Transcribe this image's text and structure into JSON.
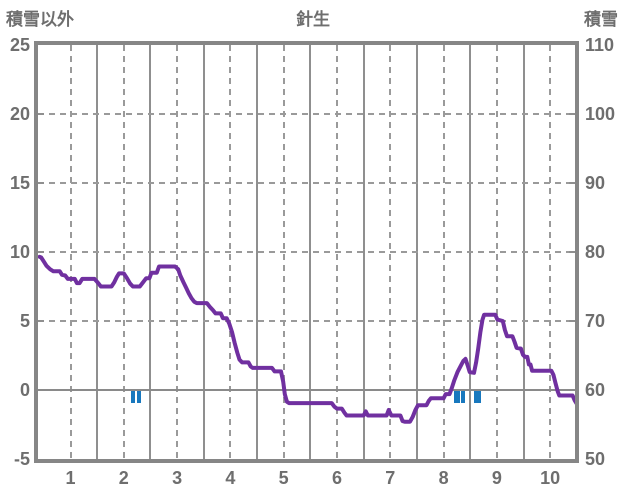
{
  "header": {
    "left_axis_title": "積雪以外",
    "chart_title": "針生",
    "right_axis_title": "積雪"
  },
  "colors": {
    "line": "#7030a0",
    "event_marks": "#1878be",
    "frame": "#868686",
    "grid": "#9a9a9a",
    "labels": "#6e6e6e",
    "background": "#ffffff"
  },
  "chart_data": {
    "type": "line",
    "title": "針生",
    "left_axis": {
      "title": "積雪以外",
      "ticks": [
        25,
        20,
        15,
        10,
        5,
        0,
        -5
      ],
      "min": -5,
      "max": 25
    },
    "right_axis": {
      "title": "積雪",
      "ticks": [
        110,
        100,
        90,
        80,
        70,
        60,
        50
      ],
      "min": 50,
      "max": 110,
      "mapping": "right_value = 2 * left_value + 60"
    },
    "x_axis": {
      "ticks": [
        1,
        2,
        3,
        4,
        5,
        6,
        7,
        8,
        9,
        10
      ],
      "min": 0.42,
      "max": 10.5
    },
    "grid": {
      "dashed_vertical_x": [
        1,
        2,
        3,
        4,
        5,
        6,
        7,
        8,
        9,
        10
      ],
      "solid_vertical_x": [
        1.5,
        2.5,
        3.5,
        4.5,
        5.5,
        6.5,
        7.5,
        8.5,
        9.5
      ],
      "dashed_horizontal_values": [
        20,
        15,
        10,
        5
      ],
      "solid_horizontal_values": [
        0
      ]
    },
    "series": [
      {
        "name": "積雪以外",
        "kind": "line",
        "color": "#7030a0",
        "points": [
          [
            0.42,
            9.65
          ],
          [
            0.45,
            9.6
          ],
          [
            0.5,
            9.3
          ],
          [
            0.55,
            9.0
          ],
          [
            0.62,
            8.75
          ],
          [
            0.68,
            8.6
          ],
          [
            0.8,
            8.6
          ],
          [
            0.84,
            8.35
          ],
          [
            0.9,
            8.3
          ],
          [
            0.95,
            8.05
          ],
          [
            1.08,
            8.05
          ],
          [
            1.12,
            7.75
          ],
          [
            1.17,
            7.75
          ],
          [
            1.22,
            8.05
          ],
          [
            1.45,
            8.05
          ],
          [
            1.52,
            7.75
          ],
          [
            1.57,
            7.5
          ],
          [
            1.77,
            7.5
          ],
          [
            1.82,
            7.8
          ],
          [
            1.87,
            8.2
          ],
          [
            1.91,
            8.45
          ],
          [
            2.0,
            8.45
          ],
          [
            2.06,
            8.1
          ],
          [
            2.12,
            7.7
          ],
          [
            2.17,
            7.5
          ],
          [
            2.3,
            7.5
          ],
          [
            2.36,
            7.8
          ],
          [
            2.42,
            8.1
          ],
          [
            2.48,
            8.1
          ],
          [
            2.52,
            8.5
          ],
          [
            2.62,
            8.5
          ],
          [
            2.66,
            8.95
          ],
          [
            2.96,
            8.95
          ],
          [
            3.02,
            8.75
          ],
          [
            3.06,
            8.3
          ],
          [
            3.12,
            7.8
          ],
          [
            3.17,
            7.4
          ],
          [
            3.22,
            7.0
          ],
          [
            3.27,
            6.65
          ],
          [
            3.32,
            6.4
          ],
          [
            3.37,
            6.3
          ],
          [
            3.56,
            6.3
          ],
          [
            3.62,
            6.0
          ],
          [
            3.67,
            5.8
          ],
          [
            3.72,
            5.55
          ],
          [
            3.82,
            5.55
          ],
          [
            3.86,
            5.2
          ],
          [
            3.93,
            5.2
          ],
          [
            3.98,
            4.8
          ],
          [
            4.03,
            4.2
          ],
          [
            4.08,
            3.4
          ],
          [
            4.13,
            2.7
          ],
          [
            4.17,
            2.2
          ],
          [
            4.22,
            2.0
          ],
          [
            4.34,
            2.0
          ],
          [
            4.38,
            1.7
          ],
          [
            4.42,
            1.6
          ],
          [
            4.78,
            1.6
          ],
          [
            4.83,
            1.35
          ],
          [
            4.95,
            1.35
          ],
          [
            4.99,
            0.6
          ],
          [
            5.02,
            -0.3
          ],
          [
            5.06,
            -0.85
          ],
          [
            5.1,
            -0.95
          ],
          [
            5.9,
            -0.95
          ],
          [
            5.95,
            -1.2
          ],
          [
            6.0,
            -1.35
          ],
          [
            6.09,
            -1.35
          ],
          [
            6.14,
            -1.65
          ],
          [
            6.18,
            -1.85
          ],
          [
            6.5,
            -1.85
          ],
          [
            6.54,
            -1.55
          ],
          [
            6.58,
            -1.85
          ],
          [
            6.93,
            -1.85
          ],
          [
            6.97,
            -1.45
          ],
          [
            7.02,
            -1.85
          ],
          [
            7.19,
            -1.85
          ],
          [
            7.23,
            -2.25
          ],
          [
            7.27,
            -2.3
          ],
          [
            7.37,
            -2.3
          ],
          [
            7.42,
            -1.95
          ],
          [
            7.47,
            -1.45
          ],
          [
            7.52,
            -1.1
          ],
          [
            7.68,
            -1.1
          ],
          [
            7.72,
            -0.8
          ],
          [
            7.76,
            -0.6
          ],
          [
            8.0,
            -0.6
          ],
          [
            8.04,
            -0.3
          ],
          [
            8.11,
            -0.3
          ],
          [
            8.15,
            0.1
          ],
          [
            8.2,
            0.7
          ],
          [
            8.26,
            1.3
          ],
          [
            8.32,
            1.75
          ],
          [
            8.37,
            2.1
          ],
          [
            8.41,
            2.25
          ],
          [
            8.45,
            1.8
          ],
          [
            8.49,
            1.3
          ],
          [
            8.57,
            1.25
          ],
          [
            8.61,
            2.0
          ],
          [
            8.65,
            3.0
          ],
          [
            8.69,
            4.2
          ],
          [
            8.73,
            5.1
          ],
          [
            8.76,
            5.45
          ],
          [
            8.97,
            5.45
          ],
          [
            9.01,
            5.1
          ],
          [
            9.11,
            5.0
          ],
          [
            9.15,
            4.35
          ],
          [
            9.19,
            3.9
          ],
          [
            9.29,
            3.9
          ],
          [
            9.33,
            3.5
          ],
          [
            9.37,
            3.05
          ],
          [
            9.45,
            3.0
          ],
          [
            9.49,
            2.55
          ],
          [
            9.53,
            2.4
          ],
          [
            9.57,
            2.4
          ],
          [
            9.6,
            1.85
          ],
          [
            9.63,
            1.85
          ],
          [
            9.66,
            1.4
          ],
          [
            10.02,
            1.4
          ],
          [
            10.06,
            1.1
          ],
          [
            10.1,
            0.5
          ],
          [
            10.14,
            -0.1
          ],
          [
            10.17,
            -0.4
          ],
          [
            10.42,
            -0.4
          ],
          [
            10.46,
            -0.75
          ],
          [
            10.5,
            -1.0
          ]
        ]
      },
      {
        "name": "積雪",
        "kind": "event-bars",
        "color": "#1878be",
        "bars": [
          {
            "x": 2.17,
            "w": 0.075
          },
          {
            "x": 2.29,
            "w": 0.075
          },
          {
            "x": 8.25,
            "w": 0.11
          },
          {
            "x": 8.36,
            "w": 0.075
          },
          {
            "x": 8.63,
            "w": 0.13
          }
        ],
        "value_top": 0,
        "value_bottom": -0.9
      }
    ]
  }
}
